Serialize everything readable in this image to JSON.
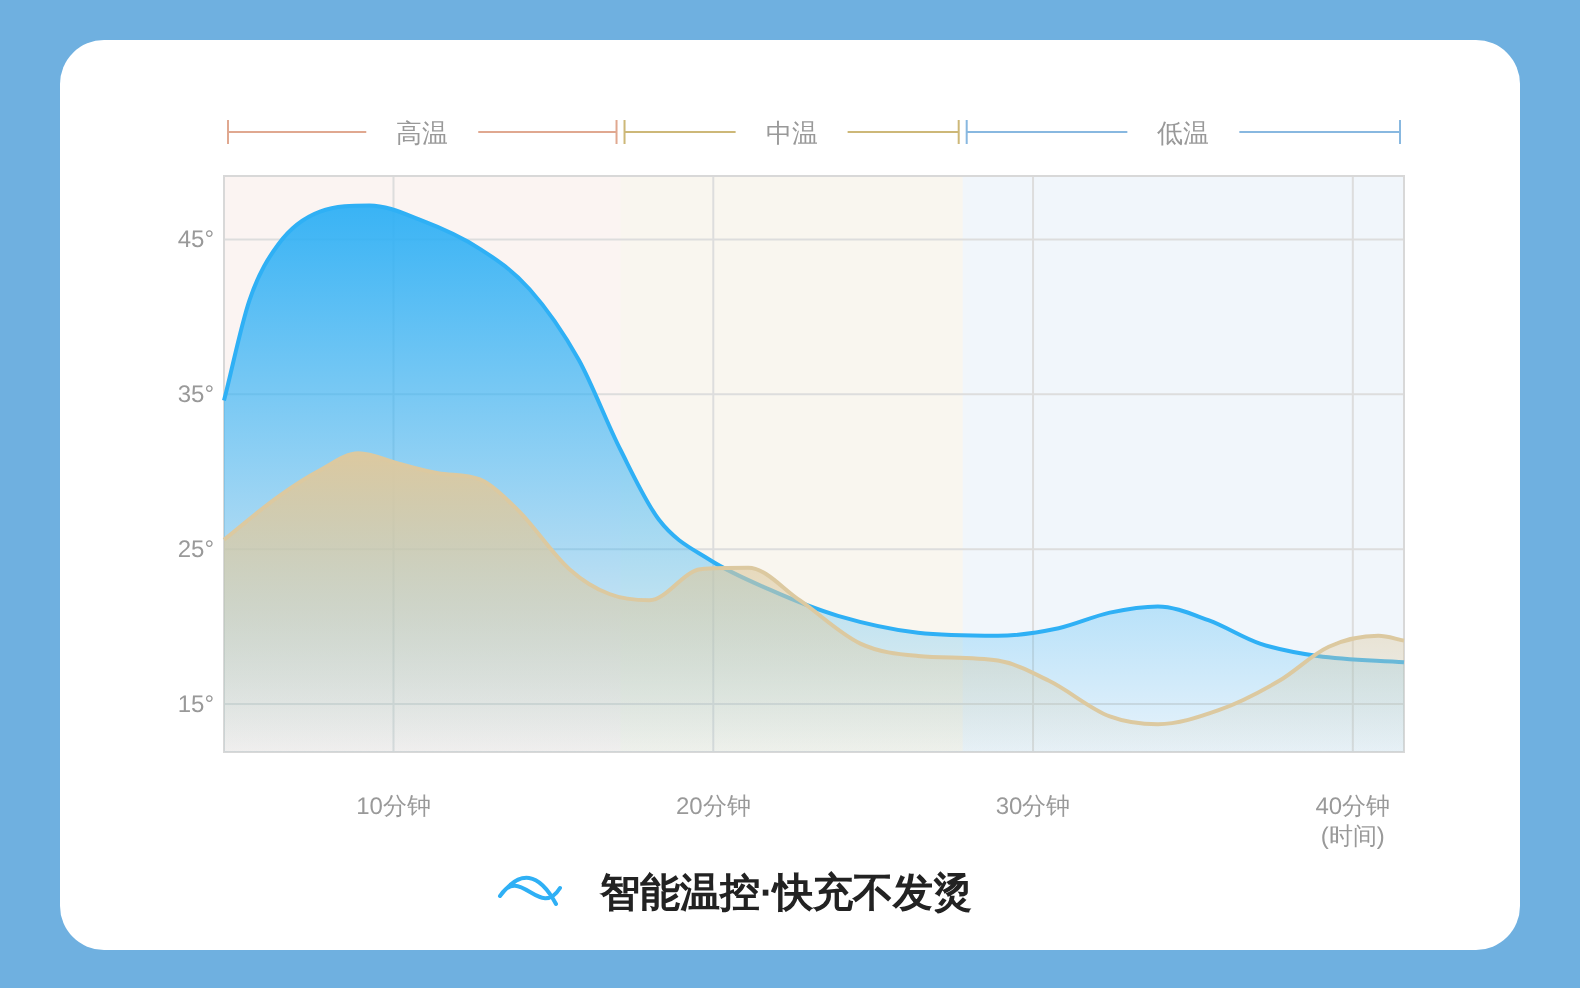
{
  "chart_data": {
    "type": "area",
    "xlabel": "(时间)",
    "xlim": [
      4.7,
      41.6
    ],
    "ylim": [
      11.9,
      49.1
    ],
    "xticks": [
      {
        "value": 10,
        "label": "10分钟"
      },
      {
        "value": 20,
        "label": "20分钟"
      },
      {
        "value": 30,
        "label": "30分钟"
      },
      {
        "value": 40,
        "label": "40分钟"
      }
    ],
    "yticks": [
      {
        "value": 15,
        "label": "15°"
      },
      {
        "value": 25,
        "label": "25°"
      },
      {
        "value": 35,
        "label": "35°"
      },
      {
        "value": 45,
        "label": "45°"
      }
    ],
    "grid": true,
    "legend": "bottom",
    "bands": [
      {
        "axis": "x",
        "from": 4.7,
        "to": 17.1,
        "label": "高温",
        "color": "#e0a890"
      },
      {
        "axis": "x",
        "from": 17.1,
        "to": 27.8,
        "label": "中温",
        "color": "#cdb878"
      },
      {
        "axis": "x",
        "from": 27.8,
        "to": 41.6,
        "label": "低温",
        "color": "#88b8e0"
      }
    ],
    "series": [
      {
        "name": "智能温控·快充不发烫",
        "color": "#2fb0f5",
        "x": [
          4.7,
          5.5,
          6.4,
          7.7,
          9.25,
          10.8,
          12.7,
          14.25,
          15.8,
          17.1,
          18.3,
          19.9,
          21.75,
          23.9,
          26.4,
          28.9,
          30.8,
          32.4,
          33.9,
          35.5,
          37.1,
          38.9,
          41.6
        ],
        "values": [
          34.6,
          41.1,
          44.7,
          46.8,
          47.2,
          46.3,
          44.4,
          41.8,
          37.2,
          31.4,
          26.9,
          24.3,
          22.4,
          20.7,
          19.6,
          19.4,
          19.9,
          20.9,
          21.3,
          20.4,
          18.9,
          18.1,
          17.7
        ]
      },
      {
        "color": "#dcc9a0",
        "x": [
          4.7,
          6.4,
          7.7,
          8.9,
          10.2,
          11.4,
          12.7,
          13.9,
          15.5,
          16.75,
          18,
          19.6,
          21.1,
          22.7,
          24.6,
          26.4,
          28.9,
          30.5,
          32.4,
          33.9,
          35.8,
          37.7,
          39.25,
          40.8,
          41.6
        ],
        "values": [
          25.6,
          28.4,
          30.1,
          31.2,
          30.5,
          29.9,
          29.5,
          27.5,
          23.7,
          22.1,
          21.7,
          23.7,
          23.8,
          21.7,
          18.9,
          18.1,
          17.8,
          16.5,
          14.2,
          13.7,
          14.6,
          16.5,
          18.7,
          19.4,
          19.1
        ]
      }
    ]
  }
}
